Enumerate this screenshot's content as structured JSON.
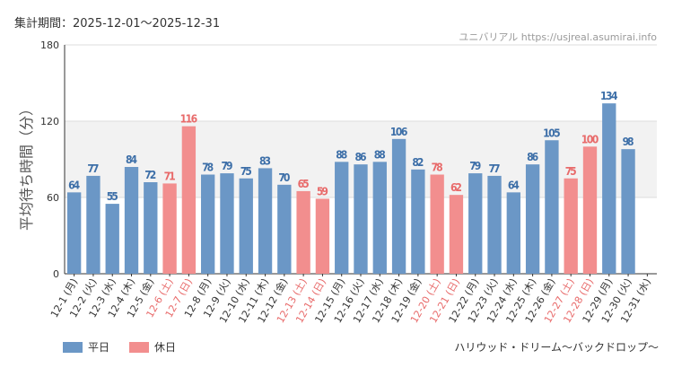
{
  "header": {
    "period_label": "集計期間：2025-12-01～2025-12-31",
    "watermark": "ユニバリアル https://usjreal.asumirai.info"
  },
  "footer": {
    "attraction_name": "ハリウッド・ドリーム～バックドロップ～"
  },
  "colors": {
    "weekday": "#6b97c6",
    "holiday": "#f28e8e",
    "holiday_text": "#e86a6a",
    "weekday_text": "#3d6fa8",
    "band": "#f2f2f2"
  },
  "chart_data": {
    "type": "bar",
    "ylabel": "平均待ち時間（分）",
    "ylim": [
      0,
      180
    ],
    "yticks": [
      0,
      60,
      120,
      180
    ],
    "band": [
      60,
      120
    ],
    "legend": [
      {
        "key": "weekday",
        "label": "平日"
      },
      {
        "key": "holiday",
        "label": "休日"
      }
    ],
    "categories": [
      "12-1 (月)",
      "12-2 (火)",
      "12-3 (水)",
      "12-4 (木)",
      "12-5 (金)",
      "12-6 (土)",
      "12-7 (日)",
      "12-8 (月)",
      "12-9 (火)",
      "12-10 (水)",
      "12-11 (木)",
      "12-12 (金)",
      "12-13 (土)",
      "12-14 (日)",
      "12-15 (月)",
      "12-16 (火)",
      "12-17 (水)",
      "12-18 (木)",
      "12-19 (金)",
      "12-20 (土)",
      "12-21 (日)",
      "12-22 (月)",
      "12-23 (火)",
      "12-24 (水)",
      "12-25 (木)",
      "12-26 (金)",
      "12-27 (土)",
      "12-28 (日)",
      "12-29 (月)",
      "12-30 (火)",
      "12-31 (水)"
    ],
    "values": [
      64,
      77,
      55,
      84,
      72,
      71,
      116,
      78,
      79,
      75,
      83,
      70,
      65,
      59,
      88,
      86,
      88,
      106,
      82,
      78,
      62,
      79,
      77,
      64,
      86,
      105,
      75,
      100,
      134,
      98,
      null
    ],
    "day_type": [
      "weekday",
      "weekday",
      "weekday",
      "weekday",
      "weekday",
      "holiday",
      "holiday",
      "weekday",
      "weekday",
      "weekday",
      "weekday",
      "weekday",
      "holiday",
      "holiday",
      "weekday",
      "weekday",
      "weekday",
      "weekday",
      "weekday",
      "holiday",
      "holiday",
      "weekday",
      "weekday",
      "weekday",
      "weekday",
      "weekday",
      "holiday",
      "holiday",
      "weekday",
      "weekday",
      "weekday"
    ]
  }
}
